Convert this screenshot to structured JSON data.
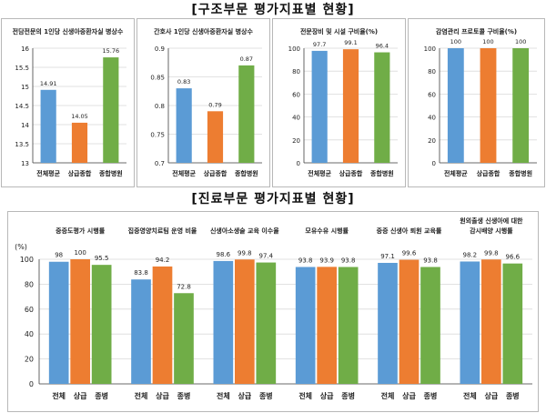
{
  "sections": {
    "structure_title": "[구조부문 평가지표별 현황]",
    "care_title": "[진료부문 평가지표별 현황]"
  },
  "colors": {
    "blue": "#5b9bd5",
    "orange": "#ed7d31",
    "green": "#70ad47",
    "grid": "#d9d9d9",
    "axis": "#404040"
  },
  "chart_data": [
    {
      "type": "bar",
      "title": "전담전문의 1인당 신생아중환자실 병상수",
      "categories": [
        "전체평균",
        "상급종합",
        "종합병원"
      ],
      "values": [
        14.91,
        14.05,
        15.76
      ],
      "value_labels": [
        "14.91",
        "14.05",
        "15.76"
      ],
      "ylim": [
        13,
        16
      ],
      "yticks": [
        "13",
        "13.5",
        "14",
        "14.5",
        "15",
        "15.5",
        "16"
      ],
      "grid": true
    },
    {
      "type": "bar",
      "title": "간호사 1인당 신생아중환자실 병상수",
      "categories": [
        "전체평균",
        "상급종합",
        "종합병원"
      ],
      "values": [
        0.83,
        0.79,
        0.87
      ],
      "value_labels": [
        "0.83",
        "0.79",
        "0.87"
      ],
      "ylim": [
        0.7,
        0.9
      ],
      "yticks": [
        "0.7",
        "0.75",
        "0.8",
        "0.85",
        "0.9"
      ],
      "grid": true
    },
    {
      "type": "bar",
      "title": "전문장비 및 시설 구비율(%)",
      "categories": [
        "전체평균",
        "상급종합",
        "종합병원"
      ],
      "values": [
        97.7,
        99.1,
        96.4
      ],
      "value_labels": [
        "97.7",
        "99.1",
        "96.4"
      ],
      "ylim": [
        0,
        100
      ],
      "yticks": [
        "0",
        "20",
        "40",
        "60",
        "80",
        "100"
      ],
      "grid": true
    },
    {
      "type": "bar",
      "title": "감염관리 프로토콜 구비율(%)",
      "categories": [
        "전체평균",
        "상급종합",
        "종합병원"
      ],
      "values": [
        100,
        100,
        100
      ],
      "value_labels": [
        "100",
        "100",
        "100"
      ],
      "ylim": [
        0,
        100
      ],
      "yticks": [
        "0",
        "20",
        "40",
        "60",
        "80",
        "100"
      ],
      "grid": true
    },
    {
      "type": "bar",
      "ylabel": "(%)",
      "ylim": [
        0,
        100
      ],
      "yticks": [
        "0",
        "20",
        "40",
        "60",
        "80",
        "100"
      ],
      "grid": true,
      "groups": [
        {
          "title": "중증도평가 시행률",
          "categories": [
            "전체",
            "상급",
            "종병"
          ],
          "values": [
            98,
            100,
            95.5
          ],
          "value_labels": [
            "98",
            "100",
            "95.5"
          ]
        },
        {
          "title": "집중영양치료팀 운영 비율",
          "categories": [
            "전체",
            "상급",
            "종병"
          ],
          "values": [
            83.8,
            94.2,
            72.8
          ],
          "value_labels": [
            "83.8",
            "94.2",
            "72.8"
          ]
        },
        {
          "title": "신생아소생술 교육 이수율",
          "categories": [
            "전체",
            "상급",
            "종병"
          ],
          "values": [
            98.6,
            99.8,
            97.4
          ],
          "value_labels": [
            "98.6",
            "99.8",
            "97.4"
          ]
        },
        {
          "title": "모유수유 시행률",
          "categories": [
            "전체",
            "상급",
            "종병"
          ],
          "values": [
            93.8,
            93.9,
            93.8
          ],
          "value_labels": [
            "93.8",
            "93.9",
            "93.8"
          ]
        },
        {
          "title": "중증 신생아 퇴원 교육률",
          "categories": [
            "전체",
            "상급",
            "종병"
          ],
          "values": [
            97.1,
            99.6,
            93.8
          ],
          "value_labels": [
            "97.1",
            "99.6",
            "93.8"
          ]
        },
        {
          "title": "원외출생 신생아에 대한 감시배양 시행률",
          "title_lines": [
            "원외출생 신생아에 대한",
            "감시배양 시행률"
          ],
          "categories": [
            "전체",
            "상급",
            "종병"
          ],
          "values": [
            98.2,
            99.8,
            96.6
          ],
          "value_labels": [
            "98.2",
            "99.8",
            "96.6"
          ]
        }
      ]
    }
  ]
}
